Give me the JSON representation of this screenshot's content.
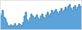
{
  "chart_data": {
    "type": "area",
    "line_style": "steps",
    "tick_labels": false,
    "grid": false,
    "xlim": [
      0,
      59
    ],
    "ylim": [
      20,
      95
    ],
    "series": [
      {
        "type": "area",
        "color": "#5ba3d9",
        "values": [
          62,
          55,
          70,
          52,
          48,
          38,
          30,
          28,
          32,
          28,
          30,
          35,
          28,
          30,
          35,
          32,
          30,
          38,
          55,
          65,
          45,
          38,
          50,
          60,
          55,
          48,
          52,
          58,
          50,
          45,
          55,
          60,
          52,
          48,
          58,
          65,
          55,
          60,
          70,
          62,
          68,
          72,
          65,
          60,
          68,
          75,
          65,
          70,
          78,
          72,
          80,
          85,
          75,
          68,
          78,
          82,
          72,
          78,
          85,
          80
        ]
      },
      {
        "type": "line",
        "color": "#3a80b8",
        "values": [
          62,
          55,
          70,
          52,
          48,
          38,
          30,
          28,
          32,
          28,
          30,
          35,
          28,
          30,
          35,
          32,
          30,
          38,
          55,
          65,
          45,
          38,
          50,
          60,
          55,
          48,
          52,
          58,
          50,
          45,
          55,
          60,
          52,
          48,
          58,
          65,
          55,
          60,
          70,
          62,
          68,
          72,
          65,
          60,
          68,
          75,
          65,
          70,
          78,
          72,
          80,
          85,
          75,
          68,
          78,
          82,
          72,
          78,
          85,
          80
        ]
      }
    ]
  }
}
